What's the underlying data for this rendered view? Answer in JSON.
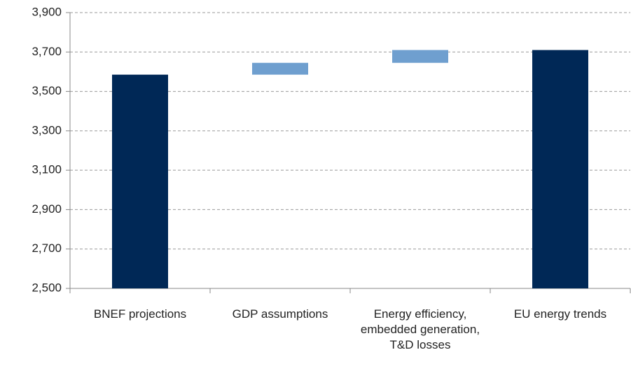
{
  "chart_data": {
    "type": "waterfall",
    "categories": [
      "BNEF projections",
      "GDP assumptions",
      "Energy efficiency, embedded generation, T&D losses",
      "EU energy trends"
    ],
    "values": [
      3585,
      60,
      65,
      3710
    ],
    "total": [
      true,
      false,
      false,
      true
    ],
    "colors": {
      "total": "#002856",
      "change": "#6f9fcf"
    },
    "ylim": [
      2500,
      3900
    ],
    "yticks": [
      {
        "value": 2500,
        "label": "2,500"
      },
      {
        "value": 2700,
        "label": "2,700"
      },
      {
        "value": 2900,
        "label": "2,900"
      },
      {
        "value": 3100,
        "label": "3,100"
      },
      {
        "value": 3300,
        "label": "3,300"
      },
      {
        "value": 3500,
        "label": "3,500"
      },
      {
        "value": 3700,
        "label": "3,700"
      },
      {
        "value": 3900,
        "label": "3,900"
      }
    ],
    "grid": true
  }
}
